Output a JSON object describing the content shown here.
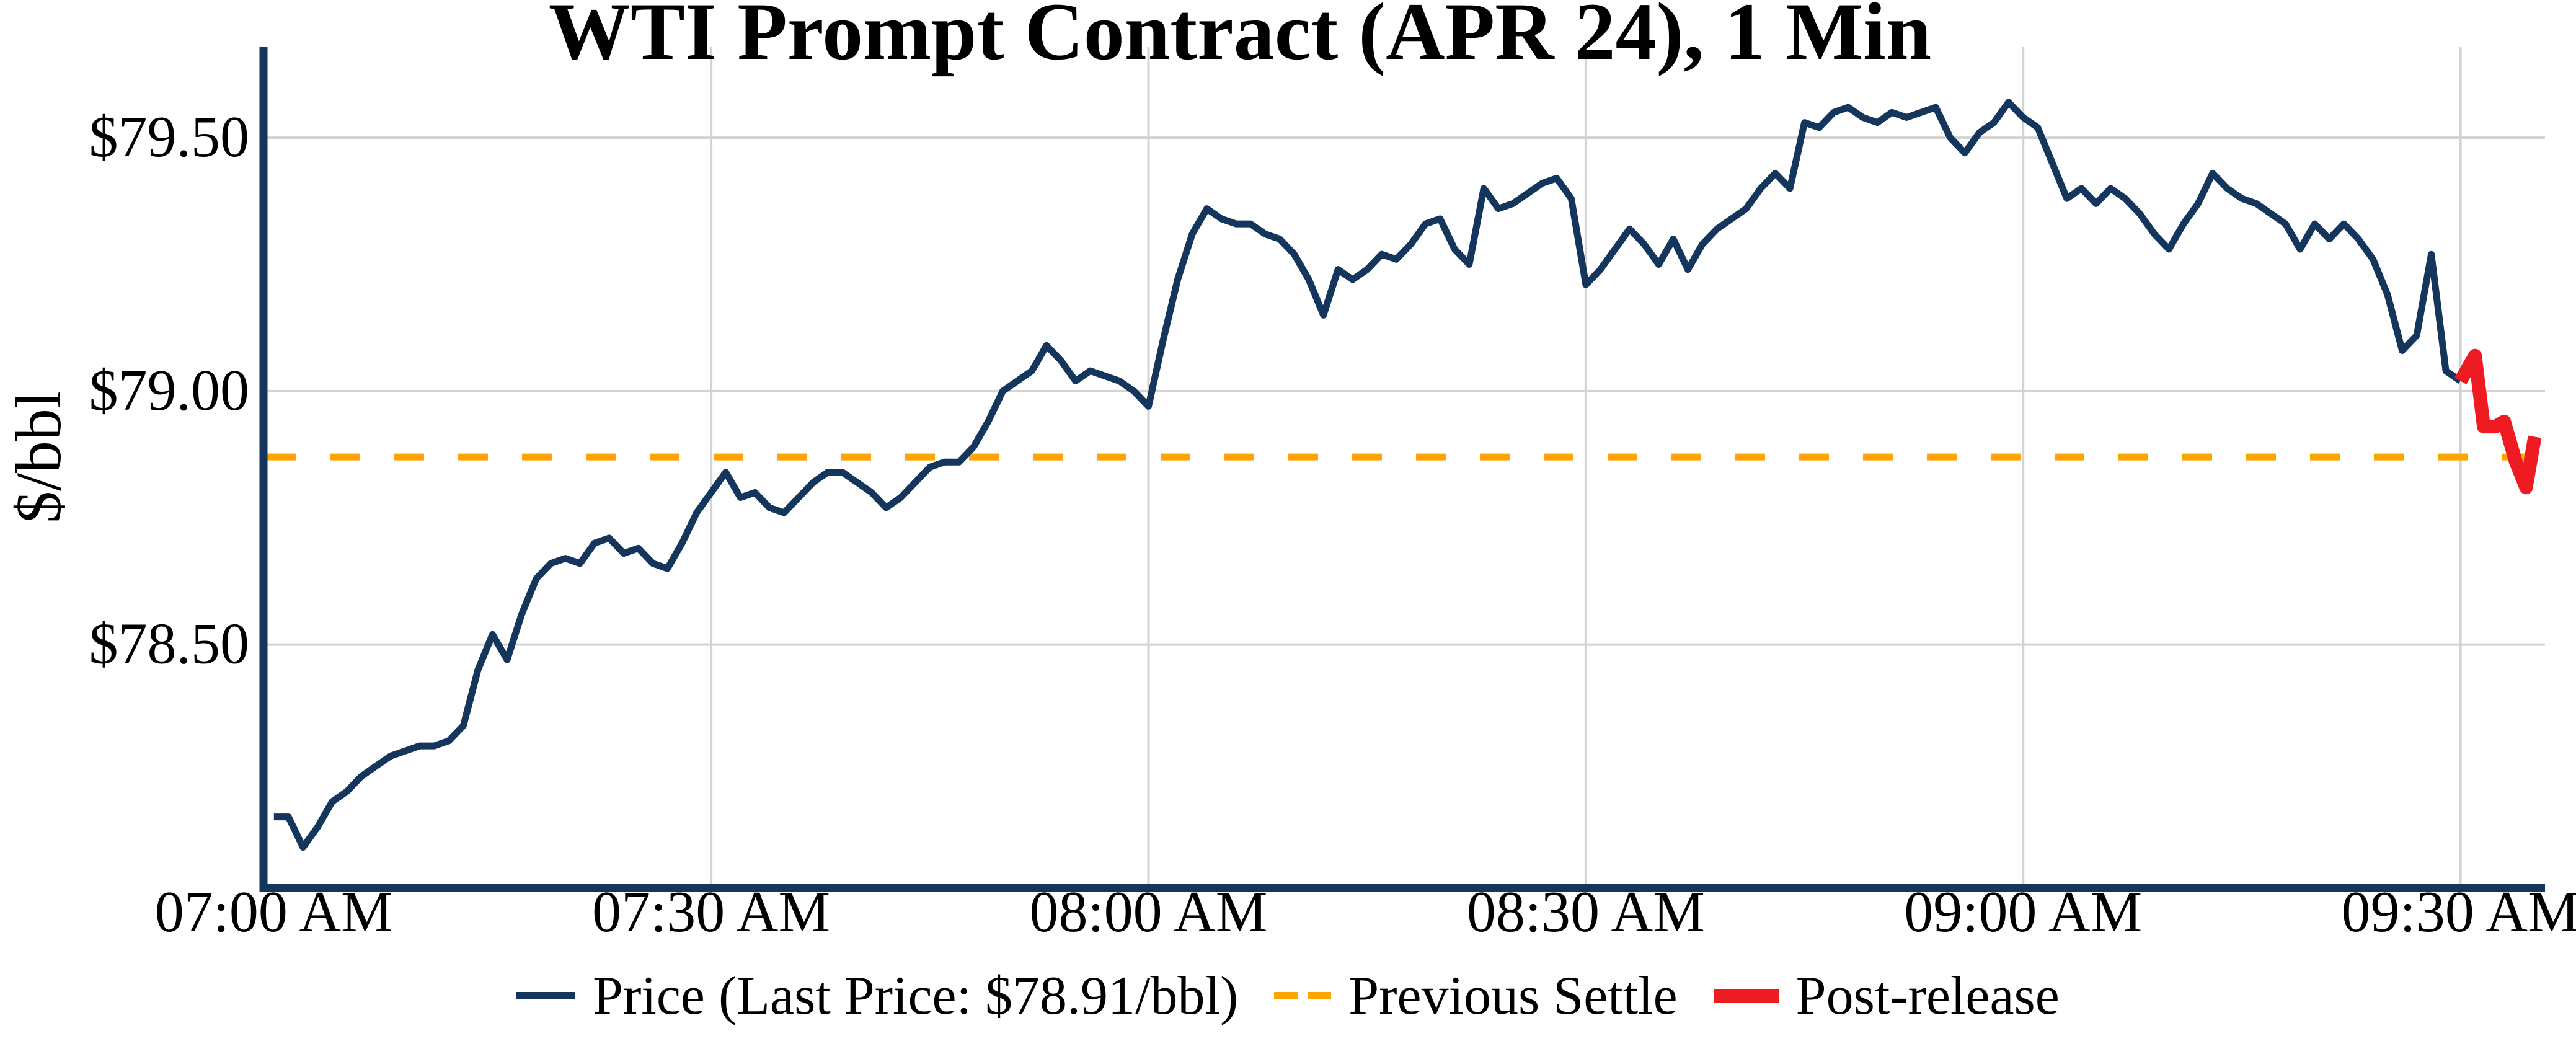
{
  "header": {
    "title": "WTI Prompt Contract (APR 24), 1 Min"
  },
  "chart_data": {
    "type": "line",
    "title": "WTI Prompt Contract (APR 24), 1 Min",
    "ylabel": "$/bbl",
    "xlabel": "",
    "grid": true,
    "legend_position": "bottom-center",
    "x_axis": {
      "tick_labels": [
        "07:00 AM",
        "07:30 AM",
        "08:00 AM",
        "08:30 AM",
        "09:00 AM",
        "09:30 AM"
      ],
      "tick_minutes": [
        0,
        30,
        60,
        90,
        120,
        150
      ],
      "xlim_minutes": [
        -0.5,
        155.8
      ],
      "gridline_tick_indexes": [
        1,
        2,
        3,
        4,
        5
      ]
    },
    "y_axis": {
      "ticks": [
        {
          "label": "$79.50",
          "value": 79.5
        },
        {
          "label": "$79.00",
          "value": 79.0
        },
        {
          "label": "$78.50",
          "value": 78.5
        }
      ],
      "ylim": [
        78.02,
        79.68
      ]
    },
    "previous_settle": {
      "label": "Previous Settle",
      "value": 78.87,
      "color": "#FFA500"
    },
    "last_price": 78.91,
    "series": [
      {
        "name": "Price",
        "color": "#14365c",
        "stroke_width": 11,
        "style": "solid",
        "x_start_minute": 0,
        "x_interval_minutes": 1,
        "values": [
          78.16,
          78.16,
          78.1,
          78.14,
          78.19,
          78.21,
          78.24,
          78.26,
          78.28,
          78.29,
          78.3,
          78.3,
          78.31,
          78.34,
          78.45,
          78.52,
          78.47,
          78.56,
          78.63,
          78.66,
          78.67,
          78.66,
          78.7,
          78.71,
          78.68,
          78.69,
          78.66,
          78.65,
          78.7,
          78.76,
          78.8,
          78.84,
          78.79,
          78.8,
          78.77,
          78.76,
          78.79,
          78.82,
          78.84,
          78.84,
          78.82,
          78.8,
          78.77,
          78.79,
          78.82,
          78.85,
          78.86,
          78.86,
          78.89,
          78.94,
          79.0,
          79.02,
          79.04,
          79.09,
          79.06,
          79.02,
          79.04,
          79.03,
          79.02,
          79.0,
          78.97,
          79.1,
          79.22,
          79.31,
          79.36,
          79.34,
          79.33,
          79.33,
          79.31,
          79.3,
          79.27,
          79.22,
          79.15,
          79.24,
          79.22,
          79.24,
          79.27,
          79.26,
          79.29,
          79.33,
          79.34,
          79.28,
          79.25,
          79.4,
          79.36,
          79.37,
          79.39,
          79.41,
          79.42,
          79.38,
          79.21,
          79.24,
          79.28,
          79.32,
          79.29,
          79.25,
          79.3,
          79.24,
          79.29,
          79.32,
          79.34,
          79.36,
          79.4,
          79.43,
          79.4,
          79.53,
          79.52,
          79.55,
          79.56,
          79.54,
          79.53,
          79.55,
          79.54,
          79.55,
          79.56,
          79.5,
          79.47,
          79.51,
          79.53,
          79.57,
          79.54,
          79.52,
          79.45,
          79.38,
          79.4,
          79.37,
          79.4,
          79.38,
          79.35,
          79.31,
          79.28,
          79.33,
          79.37,
          79.43,
          79.4,
          79.38,
          79.37,
          79.35,
          79.33,
          79.28,
          79.33,
          79.3,
          79.33,
          79.3,
          79.26,
          79.19,
          79.08,
          79.11,
          79.27,
          79.04,
          79.02
        ]
      },
      {
        "name": "Post-release",
        "color": "#EE1B23",
        "stroke_width": 22,
        "style": "solid",
        "x_minutes": [
          150,
          151,
          151.6,
          152.4,
          153.0,
          153.8,
          154.5,
          155.1
        ],
        "values": [
          79.02,
          79.07,
          78.93,
          78.93,
          78.94,
          78.86,
          78.81,
          78.91
        ]
      }
    ],
    "legend": [
      {
        "label": "Price (Last Price: $78.91/bbl)",
        "color": "#14365c",
        "style": "line"
      },
      {
        "label": "Previous Settle",
        "color": "#FFA500",
        "style": "dashed"
      },
      {
        "label": "Post-release",
        "color": "#EE1B23",
        "style": "thick-line"
      }
    ],
    "style": {
      "grid_color": "#d3d3d3",
      "spine_color": "#14365c",
      "settle_dash": [
        48,
        55
      ]
    }
  }
}
